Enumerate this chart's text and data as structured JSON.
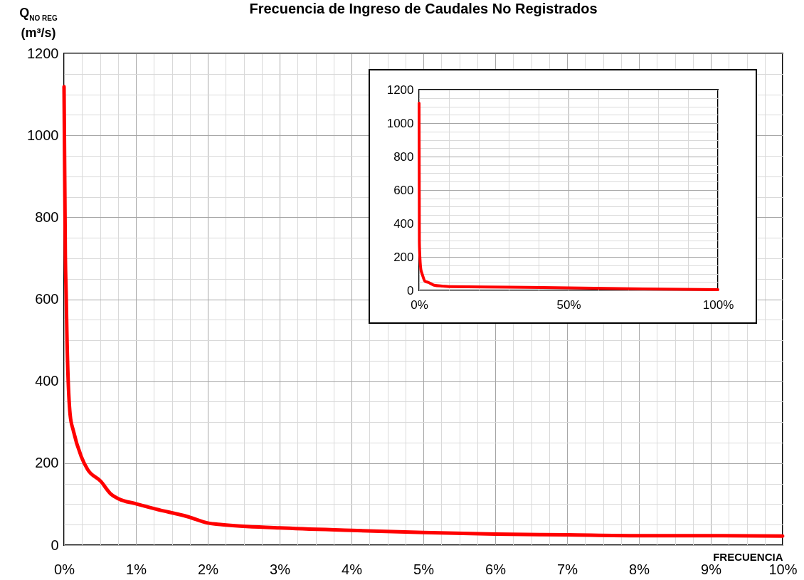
{
  "chart_data": [
    {
      "type": "line",
      "title": "Frecuencia de Ingreso de Caudales No Registrados",
      "xlabel": "FRECUENCIA",
      "ylabel": "Q$_{NO REG}$ (m³/s)",
      "series": [
        {
          "color": "#ff0000",
          "x": [
            0,
            0.018,
            0.03,
            0.04,
            0.085,
            0.13,
            0.24,
            0.33,
            0.51,
            0.65,
            0.76,
            1.0,
            1.28,
            1.73,
            2.0,
            2.2,
            3,
            4,
            5,
            6,
            7,
            8,
            9,
            10
          ],
          "values": [
            1119,
            705,
            610,
            515,
            318,
            279,
            216,
            184,
            156,
            125,
            113,
            101,
            88,
            69,
            54,
            50,
            42,
            36,
            31,
            27,
            25,
            23,
            23,
            22
          ]
        }
      ],
      "xlim": [
        0,
        10
      ],
      "xticks": [
        {
          "value": 0,
          "label": "0%"
        },
        {
          "value": 0.25,
          "label": null
        },
        {
          "value": 0.5,
          "label": null
        },
        {
          "value": 0.75,
          "label": null
        },
        {
          "value": 1,
          "label": "1%"
        },
        {
          "value": 1.25,
          "label": null
        },
        {
          "value": 1.5,
          "label": null
        },
        {
          "value": 1.75,
          "label": null
        },
        {
          "value": 2,
          "label": "2%"
        },
        {
          "value": 2.25,
          "label": null
        },
        {
          "value": 2.5,
          "label": null
        },
        {
          "value": 2.75,
          "label": null
        },
        {
          "value": 3,
          "label": "3%"
        },
        {
          "value": 3.25,
          "label": null
        },
        {
          "value": 3.5,
          "label": null
        },
        {
          "value": 3.75,
          "label": null
        },
        {
          "value": 4,
          "label": "4%"
        },
        {
          "value": 4.25,
          "label": null
        },
        {
          "value": 4.5,
          "label": null
        },
        {
          "value": 4.75,
          "label": null
        },
        {
          "value": 5,
          "label": "5%"
        },
        {
          "value": 5.25,
          "label": null
        },
        {
          "value": 5.5,
          "label": null
        },
        {
          "value": 5.75,
          "label": null
        },
        {
          "value": 6,
          "label": "6%"
        },
        {
          "value": 6.25,
          "label": null
        },
        {
          "value": 6.5,
          "label": null
        },
        {
          "value": 6.75,
          "label": null
        },
        {
          "value": 7,
          "label": "7%"
        },
        {
          "value": 7.25,
          "label": null
        },
        {
          "value": 7.5,
          "label": null
        },
        {
          "value": 7.75,
          "label": null
        },
        {
          "value": 8,
          "label": "8%"
        },
        {
          "value": 8.25,
          "label": null
        },
        {
          "value": 8.5,
          "label": null
        },
        {
          "value": 8.75,
          "label": null
        },
        {
          "value": 9,
          "label": "9%"
        },
        {
          "value": 9.25,
          "label": null
        },
        {
          "value": 9.5,
          "label": null
        },
        {
          "value": 9.75,
          "label": null
        },
        {
          "value": 10,
          "label": "10%"
        }
      ],
      "ylim": [
        0,
        1200
      ],
      "yticks": [
        0,
        {
          "value": 50,
          "label": null
        },
        {
          "value": 100,
          "label": null
        },
        {
          "value": 150,
          "label": null
        },
        200,
        {
          "value": 250,
          "label": null
        },
        {
          "value": 300,
          "label": null
        },
        {
          "value": 350,
          "label": null
        },
        400,
        {
          "value": 450,
          "label": null
        },
        {
          "value": 500,
          "label": null
        },
        {
          "value": 550,
          "label": null
        },
        600,
        {
          "value": 650,
          "label": null
        },
        {
          "value": 700,
          "label": null
        },
        {
          "value": 750,
          "label": null
        },
        800,
        {
          "value": 850,
          "label": null
        },
        {
          "value": 900,
          "label": null
        },
        {
          "value": 950,
          "label": null
        },
        1000,
        {
          "value": 1050,
          "label": null
        },
        {
          "value": 1100,
          "label": null
        },
        {
          "value": 1150,
          "label": null
        },
        1200
      ],
      "grid": true,
      "line_style": "solid",
      "marker": "none"
    },
    {
      "type": "line",
      "series": [
        {
          "color": "#ff0000",
          "x": [
            0,
            0.1,
            0.3,
            0.6,
            1,
            2,
            3,
            5,
            8,
            10,
            30,
            50,
            75,
            100
          ],
          "values": [
            1119,
            290,
            190,
            125,
            100,
            54,
            48,
            31,
            25,
            22,
            19,
            15,
            9,
            4
          ]
        }
      ],
      "xlim": [
        0,
        100
      ],
      "xticks": [
        {
          "value": 0,
          "label": "0%"
        },
        {
          "value": 10,
          "label": null
        },
        {
          "value": 20,
          "label": null
        },
        {
          "value": 30,
          "label": null
        },
        {
          "value": 40,
          "label": null
        },
        {
          "value": 50,
          "label": "50%"
        },
        {
          "value": 60,
          "label": null
        },
        {
          "value": 70,
          "label": null
        },
        {
          "value": 80,
          "label": null
        },
        {
          "value": 90,
          "label": null
        },
        {
          "value": 100,
          "label": "100%"
        }
      ],
      "ylim": [
        0,
        1200
      ],
      "yticks": [
        0,
        {
          "value": 50,
          "label": null
        },
        {
          "value": 100,
          "label": null
        },
        {
          "value": 150,
          "label": null
        },
        200,
        {
          "value": 250,
          "label": null
        },
        {
          "value": 300,
          "label": null
        },
        {
          "value": 350,
          "label": null
        },
        400,
        {
          "value": 450,
          "label": null
        },
        {
          "value": 500,
          "label": null
        },
        {
          "value": 550,
          "label": null
        },
        600,
        {
          "value": 650,
          "label": null
        },
        {
          "value": 700,
          "label": null
        },
        {
          "value": 750,
          "label": null
        },
        800,
        {
          "value": 850,
          "label": null
        },
        {
          "value": 900,
          "label": null
        },
        {
          "value": 950,
          "label": null
        },
        1000,
        {
          "value": 1050,
          "label": null
        },
        {
          "value": 1100,
          "label": null
        },
        {
          "value": 1150,
          "label": null
        },
        1200
      ],
      "grid": true,
      "line_style": "solid",
      "marker": "none"
    }
  ]
}
